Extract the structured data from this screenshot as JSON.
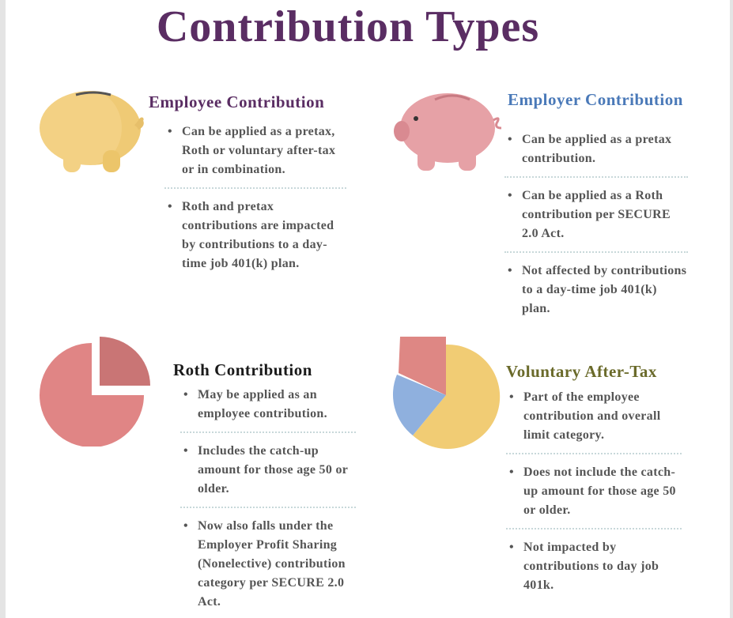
{
  "title": "Contribution Types",
  "colors": {
    "title": "#5a2d63",
    "employee_heading": "#5a2d63",
    "employer_heading": "#4a79b8",
    "roth_heading": "#1a1a1a",
    "voluntary_heading": "#6a6a2a",
    "body_text": "#555555"
  },
  "sections": {
    "employee": {
      "heading": "Employee Contribution",
      "icon": "yellow-piggy-bank-icon",
      "bullets": [
        "Can be applied as a pretax, Roth or voluntary after-tax or in combination.",
        "Roth and pretax contributions are impacted by contributions to a day-time job 401(k) plan."
      ]
    },
    "employer": {
      "heading": "Employer Contribution",
      "icon": "pink-piggy-bank-icon",
      "bullets": [
        "Can be applied as a pretax contribution.",
        "Can be applied as a Roth contribution per SECURE 2.0 Act.",
        "Not affected by contributions to a day-time job 401(k) plan."
      ]
    },
    "roth": {
      "heading": "Roth Contribution",
      "icon": "exploded-pie-chart-icon",
      "bullets": [
        "May be applied as an employee contribution.",
        "Includes the catch-up amount for those age 50 or older.",
        "Now also falls under the Employer Profit Sharing (Nonelective) contribution category per SECURE 2.0 Act."
      ]
    },
    "voluntary": {
      "heading": "Voluntary After-Tax",
      "icon": "three-color-pie-chart-icon",
      "bullets": [
        "Part of the employee contribution and overall limit category.",
        "Does not include the catch-up amount for those age 50 or older.",
        "Not impacted by contributions to day job 401k."
      ]
    }
  }
}
